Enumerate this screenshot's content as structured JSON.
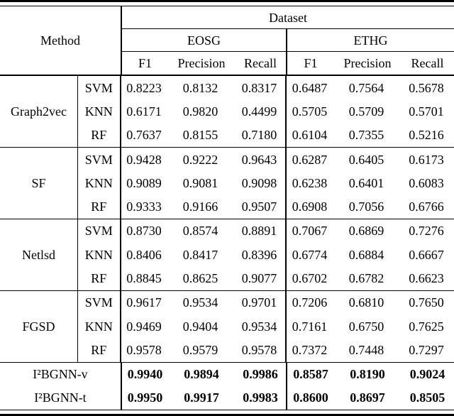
{
  "table": {
    "header": {
      "method_label": "Method",
      "dataset_label": "Dataset",
      "dataset_names": [
        "EOSG",
        "ETHG"
      ],
      "metric_names": [
        "F1",
        "Precision",
        "Recall"
      ]
    },
    "groups": [
      {
        "method": "Graph2vec",
        "rows": [
          {
            "clf": "SVM",
            "values": [
              "0.8223",
              "0.8132",
              "0.8317",
              "0.6487",
              "0.7564",
              "0.5678"
            ]
          },
          {
            "clf": "KNN",
            "values": [
              "0.6171",
              "0.9820",
              "0.4499",
              "0.5705",
              "0.5709",
              "0.5701"
            ]
          },
          {
            "clf": "RF",
            "values": [
              "0.7637",
              "0.8155",
              "0.7180",
              "0.6104",
              "0.7355",
              "0.5216"
            ]
          }
        ]
      },
      {
        "method": "SF",
        "rows": [
          {
            "clf": "SVM",
            "values": [
              "0.9428",
              "0.9222",
              "0.9643",
              "0.6287",
              "0.6405",
              "0.6173"
            ]
          },
          {
            "clf": "KNN",
            "values": [
              "0.9089",
              "0.9081",
              "0.9098",
              "0.6238",
              "0.6401",
              "0.6083"
            ]
          },
          {
            "clf": "RF",
            "values": [
              "0.9333",
              "0.9166",
              "0.9507",
              "0.6908",
              "0.7056",
              "0.6766"
            ]
          }
        ]
      },
      {
        "method": "Netlsd",
        "rows": [
          {
            "clf": "SVM",
            "values": [
              "0.8730",
              "0.8574",
              "0.8891",
              "0.7067",
              "0.6869",
              "0.7276"
            ]
          },
          {
            "clf": "KNN",
            "values": [
              "0.8406",
              "0.8417",
              "0.8396",
              "0.6774",
              "0.6884",
              "0.6667"
            ]
          },
          {
            "clf": "RF",
            "values": [
              "0.8845",
              "0.8625",
              "0.9077",
              "0.6702",
              "0.6782",
              "0.6623"
            ]
          }
        ]
      },
      {
        "method": "FGSD",
        "rows": [
          {
            "clf": "SVM",
            "values": [
              "0.9617",
              "0.9534",
              "0.9701",
              "0.7206",
              "0.6810",
              "0.7650"
            ]
          },
          {
            "clf": "KNN",
            "values": [
              "0.9469",
              "0.9404",
              "0.9534",
              "0.7161",
              "0.6750",
              "0.7625"
            ]
          },
          {
            "clf": "RF",
            "values": [
              "0.9578",
              "0.9579",
              "0.9578",
              "0.7372",
              "0.7448",
              "0.7297"
            ]
          }
        ]
      }
    ],
    "summary_rows": [
      {
        "label": "I²BGNN-v",
        "values": [
          "0.9940",
          "0.9894",
          "0.9986",
          "0.8587",
          "0.8190",
          "0.9024"
        ]
      },
      {
        "label": "I²BGNN-t",
        "values": [
          "0.9950",
          "0.9917",
          "0.9983",
          "0.8600",
          "0.8697",
          "0.8505"
        ]
      }
    ]
  }
}
